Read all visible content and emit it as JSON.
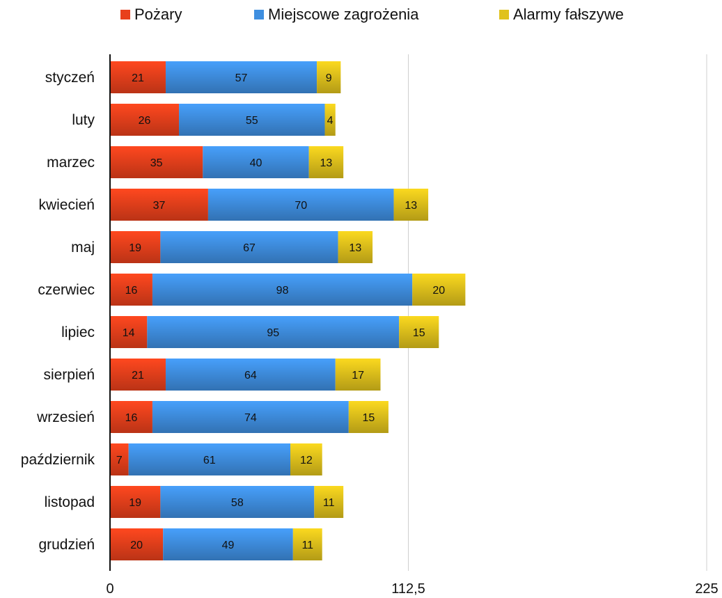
{
  "chart_data": {
    "type": "bar",
    "orientation": "horizontal",
    "stacked": true,
    "title": "",
    "xlabel": "",
    "ylabel": "",
    "categories": [
      "styczeń",
      "luty",
      "marzec",
      "kwiecień",
      "maj",
      "czerwiec",
      "lipiec",
      "sierpień",
      "wrzesień",
      "październik",
      "listopad",
      "grudzień"
    ],
    "series": [
      {
        "name": "Pożary",
        "color": "#e8401c",
        "values": [
          21,
          26,
          35,
          37,
          19,
          16,
          14,
          21,
          16,
          7,
          19,
          20
        ]
      },
      {
        "name": "Miejscowe zagrożenia",
        "color": "#3f8fe0",
        "values": [
          57,
          55,
          40,
          70,
          67,
          98,
          95,
          64,
          74,
          61,
          58,
          49
        ]
      },
      {
        "name": "Alarmy fałszywe",
        "color": "#e0c21c",
        "values": [
          9,
          4,
          13,
          13,
          13,
          20,
          15,
          17,
          15,
          12,
          11,
          11
        ]
      }
    ],
    "xlim": [
      0,
      225
    ],
    "xticks": [
      0,
      112.5,
      225
    ],
    "xtick_labels": [
      "0",
      "112,5",
      "225"
    ],
    "grid": "vertical",
    "legend_position": "top"
  }
}
